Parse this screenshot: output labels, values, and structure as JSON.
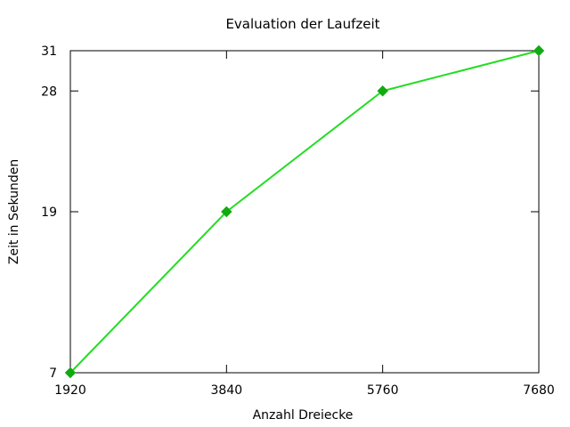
{
  "chart_data": {
    "type": "line",
    "title": "Evaluation der Laufzeit",
    "xlabel": "Anzahl Dreiecke",
    "ylabel": "Zeit in Sekunden",
    "x": [
      1920,
      3840,
      5760,
      7680
    ],
    "series": [
      {
        "values": [
          7,
          19,
          28,
          31
        ],
        "color": "#22dd22",
        "marker": "diamond",
        "markerColor": "#11aa11"
      }
    ],
    "xticks": [
      1920,
      3840,
      5760,
      7680
    ],
    "yticks": [
      7,
      19,
      28,
      31
    ],
    "xtick_labels": [
      "1920",
      "3840",
      "5760",
      "7680"
    ],
    "ytick_labels": [
      "7",
      "19",
      "28",
      "31"
    ],
    "xlim": [
      1920,
      7680
    ],
    "ylim": [
      7,
      31
    ],
    "grid": false
  }
}
